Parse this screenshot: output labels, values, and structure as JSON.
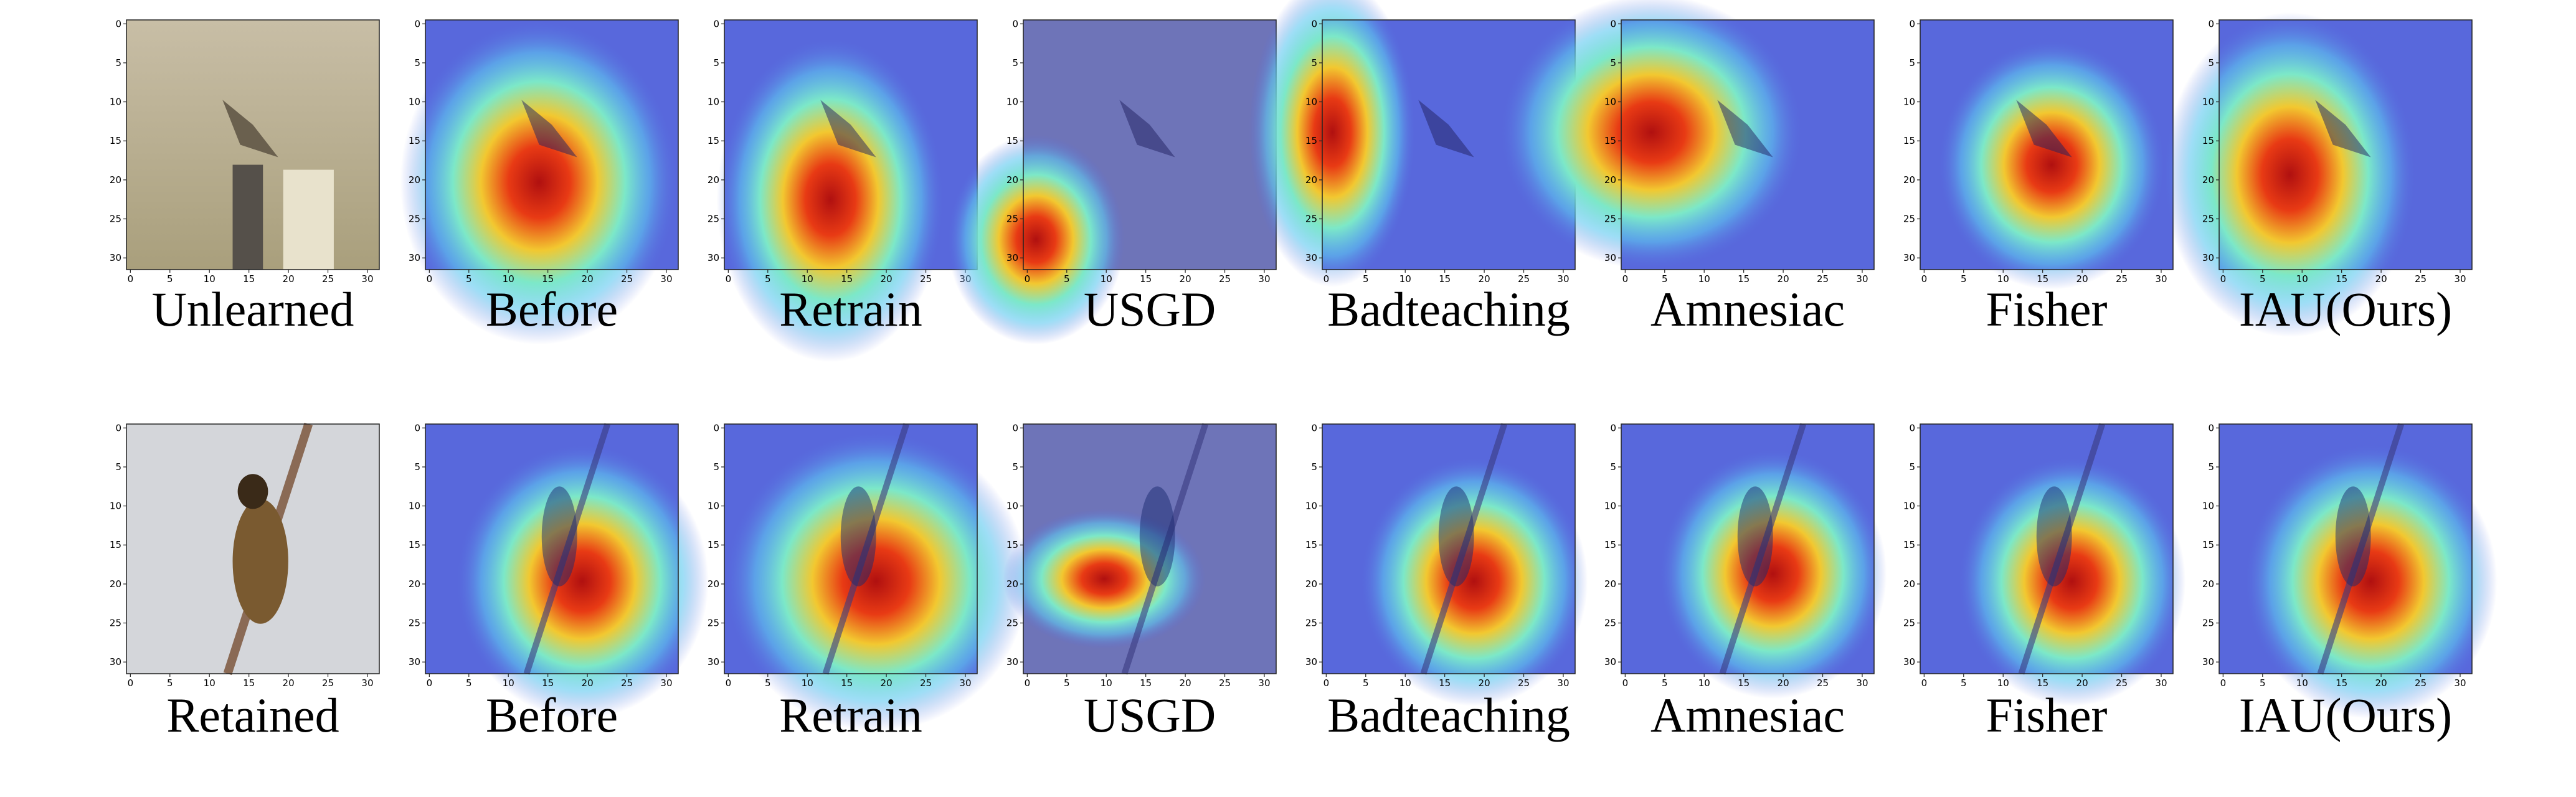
{
  "rows": [
    {
      "panels": [
        "Unlearned",
        "Before",
        "Retrain",
        "USGD",
        "Badteaching",
        "Amnesiac",
        "Fisher",
        "IAU(Ours)"
      ]
    },
    {
      "panels": [
        "Retained",
        "Before",
        "Retrain",
        "USGD",
        "Badteaching",
        "Amnesiac",
        "Fisher",
        "IAU(Ours)"
      ]
    }
  ],
  "axis_ticks": [
    0,
    5,
    10,
    15,
    20,
    25,
    30
  ]
}
